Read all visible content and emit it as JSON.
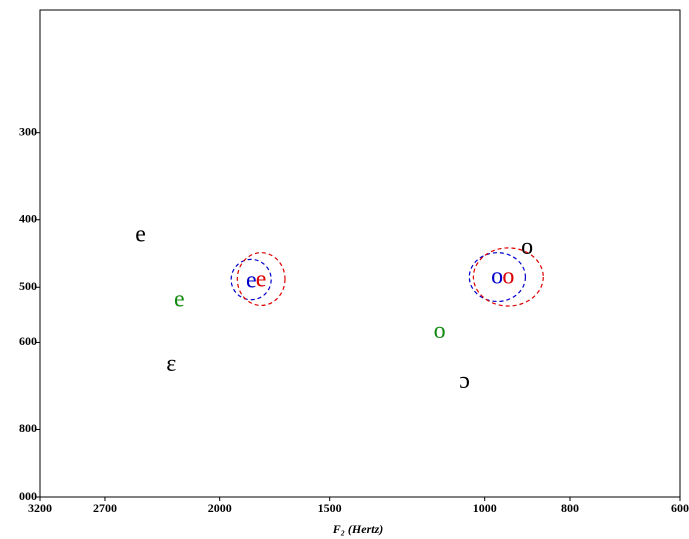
{
  "chart_data": {
    "type": "scatter",
    "xlabel": "F₂ (Hertz)",
    "xscale": "log",
    "yscale": "log",
    "xlim": [
      3200,
      600
    ],
    "ylim": [
      1000,
      200
    ],
    "xticks": [
      3200,
      2700,
      2000,
      1500,
      1000,
      800,
      600
    ],
    "yticks": [
      300,
      400,
      500,
      600,
      800,
      {
        "value": 1000,
        "label": "000"
      }
    ],
    "points": [
      {
        "label": "e",
        "color": "#000000",
        "x": 2460,
        "y": 422
      },
      {
        "label": "e",
        "color": "#138a13",
        "x": 2223,
        "y": 523
      },
      {
        "label": "ɛ",
        "color": "#000000",
        "x": 2270,
        "y": 648
      },
      {
        "label": "e",
        "color": "#0000cc",
        "x": 1841,
        "y": 491
      },
      {
        "label": "e",
        "color": "#dd0000",
        "x": 1795,
        "y": 490
      },
      {
        "label": "o",
        "color": "#000000",
        "x": 895,
        "y": 440
      },
      {
        "label": "o",
        "color": "#0000cc",
        "x": 968,
        "y": 485
      },
      {
        "label": "o",
        "color": "#dd0000",
        "x": 940,
        "y": 485
      },
      {
        "label": "o",
        "color": "#138a13",
        "x": 1125,
        "y": 581
      },
      {
        "label": "ɔ",
        "color": "#000000",
        "x": 1054,
        "y": 685
      }
    ],
    "ellipses": [
      {
        "color": "#0000cc",
        "x_range": [
          1941,
          1748
        ],
        "y_range": [
          456,
          521
        ]
      },
      {
        "color": "#dd0000",
        "x_range": [
          1910,
          1686
        ],
        "y_range": [
          446,
          531
        ]
      },
      {
        "color": "#0000cc",
        "x_range": [
          1041,
          899
        ],
        "y_range": [
          446,
          524
        ]
      },
      {
        "color": "#dd0000",
        "x_range": [
          1030,
          858
        ],
        "y_range": [
          439,
          532
        ]
      }
    ]
  }
}
